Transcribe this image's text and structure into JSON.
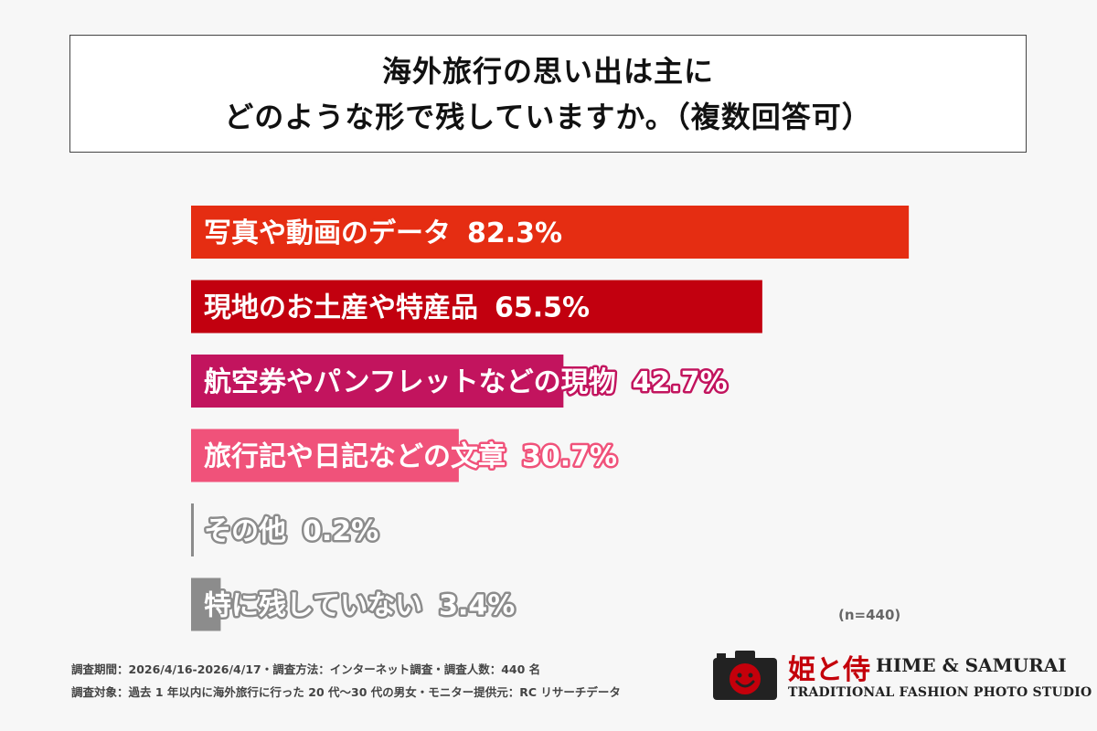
{
  "title": {
    "line1": "海外旅行の思い出は主に",
    "line2": "どのような形で残していますか。（複数回答可）"
  },
  "chart_data": {
    "type": "bar",
    "orientation": "horizontal",
    "categories": [
      "写真や動画のデータ",
      "現地のお土産や特産品",
      "航空券やパンフレットなどの現物",
      "旅行記や日記などの文章",
      "その他",
      "特に残していない"
    ],
    "values": [
      82.3,
      65.5,
      42.7,
      30.7,
      0.2,
      3.4
    ],
    "value_labels": [
      "82.3%",
      "65.5%",
      "42.7%",
      "30.7%",
      "0.2%",
      "3.4%"
    ],
    "colors": [
      "#e52d12",
      "#c2000f",
      "#c2145e",
      "#f0527a",
      "#8c8c8c",
      "#8c8c8c"
    ],
    "xlim": [
      0,
      100
    ],
    "legend": "none",
    "grid": false
  },
  "sample_note": "(n=440)",
  "footer": {
    "line1": "調査期間：2026/4/16-2026/4/17・調査方法：インターネット調査・調査人数：440 名",
    "line2": "調査対象：過去 1 年以内に海外旅行に行った 20 代〜30 代の男女・モニター提供元：RC リサーチデータ"
  },
  "logo": {
    "kanji": "姫と侍",
    "name": "HIME & SAMURAI",
    "tagline": "TRADITIONAL FASHION PHOTO STUDIO",
    "icon": "camera-smile-icon",
    "color": "#c4000b"
  }
}
